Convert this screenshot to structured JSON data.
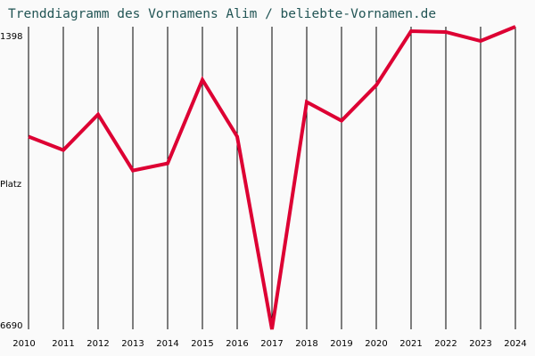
{
  "title": "Trenddiagramm des Vornamens Alim / beliebte-Vornamen.de",
  "y_axis": {
    "top_label": "1398",
    "middle_label": "Platz",
    "bottom_label": "6690"
  },
  "colors": {
    "line": "#dd0033",
    "title": "#225555",
    "grid": "#000000",
    "background": "#fafafa"
  },
  "chart_data": {
    "type": "line",
    "title": "Trenddiagramm des Vornamens Alim / beliebte-Vornamen.de",
    "xlabel": "",
    "ylabel": "Platz",
    "ylim": [
      6690,
      1398
    ],
    "y_inverted": true,
    "grid": "vertical",
    "categories": [
      "2010",
      "2011",
      "2012",
      "2013",
      "2014",
      "2015",
      "2016",
      "2017",
      "2018",
      "2019",
      "2020",
      "2021",
      "2022",
      "2023",
      "2024"
    ],
    "series": [
      {
        "name": "Alim",
        "values": [
          3321,
          3555,
          2933,
          3913,
          3788,
          2326,
          3321,
          6690,
          2715,
          3042,
          2420,
          1476,
          1491,
          1647,
          1398
        ]
      }
    ]
  }
}
